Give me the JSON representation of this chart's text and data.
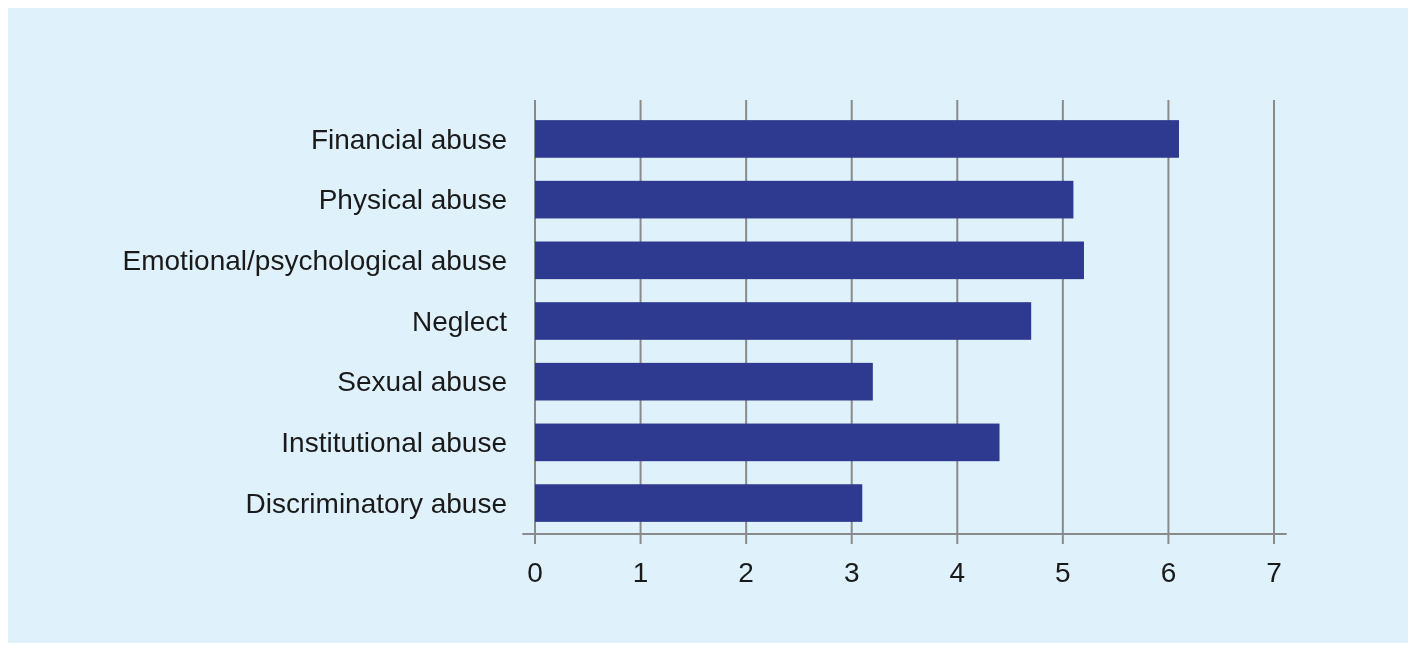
{
  "chart_data": {
    "type": "bar",
    "orientation": "horizontal",
    "categories": [
      "Financial abuse",
      "Physical abuse",
      "Emotional/psychological abuse",
      "Neglect",
      "Sexual abuse",
      "Institutional abuse",
      "Discriminatory abuse"
    ],
    "values": [
      6.1,
      5.1,
      5.2,
      4.7,
      3.2,
      4.4,
      3.1
    ],
    "color": "#2e3a8f",
    "xlim": [
      -0.12,
      7.12
    ],
    "xticks": [
      0,
      1,
      2,
      3,
      4,
      5,
      6,
      7
    ],
    "grid": "x"
  }
}
